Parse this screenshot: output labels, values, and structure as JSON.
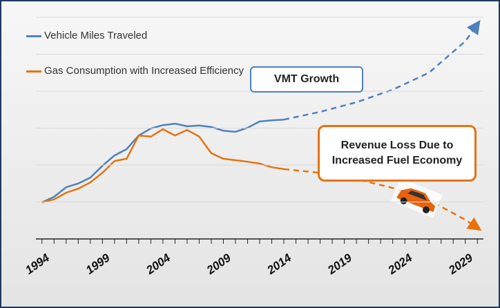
{
  "chart_data": {
    "type": "line",
    "xlim": [
      1993.5,
      2030.5
    ],
    "xticks": [
      1994,
      1999,
      2004,
      2009,
      2014,
      2019,
      2024,
      2029
    ],
    "xminorticks": [
      1994,
      1995,
      1996,
      1997,
      1998,
      1999,
      2000,
      2001,
      2002,
      2003,
      2004,
      2005,
      2006,
      2007,
      2008,
      2009,
      2010,
      2011,
      2012,
      2013,
      2014,
      2015,
      2016,
      2017,
      2018,
      2019,
      2020,
      2021,
      2022,
      2023,
      2024,
      2025,
      2026,
      2027,
      2028,
      2029,
      2030
    ],
    "ylim": [
      0,
      6
    ],
    "yticks": [
      0,
      1,
      2,
      3,
      4,
      5,
      6
    ],
    "grid": true,
    "legend": "top-left",
    "series": [
      {
        "name": "Vehicle Miles Traveled",
        "color": "#4f81bd",
        "dash": false,
        "x": [
          1994,
          1995,
          1996,
          1997,
          1998,
          1999,
          2000,
          2001,
          2002,
          2003,
          2004,
          2005,
          2006,
          2007,
          2008,
          2009,
          2010,
          2011,
          2012,
          2013,
          2014
        ],
        "values": [
          0.99,
          1.14,
          1.4,
          1.5,
          1.66,
          1.98,
          2.26,
          2.43,
          2.8,
          2.99,
          3.08,
          3.12,
          3.05,
          3.07,
          3.03,
          2.93,
          2.9,
          3.01,
          3.18,
          3.21,
          3.23
        ]
      },
      {
        "name": "Gas Consumption with Increased Efficiency",
        "color": "#e8720c",
        "dash": false,
        "x": [
          1994,
          1995,
          1996,
          1997,
          1998,
          1999,
          2000,
          2001,
          2002,
          2003,
          2004,
          2005,
          2006,
          2007,
          2008,
          2009,
          2010,
          2011,
          2012,
          2013,
          2014
        ],
        "values": [
          0.99,
          1.07,
          1.25,
          1.36,
          1.53,
          1.79,
          2.11,
          2.17,
          2.8,
          2.77,
          2.97,
          2.8,
          2.95,
          2.77,
          2.32,
          2.17,
          2.13,
          2.09,
          2.04,
          1.94,
          1.89
        ]
      },
      {
        "color": "#4f81bd",
        "dash": true,
        "x": [
          2014,
          2017,
          2020,
          2023,
          2026,
          2029,
          2030
        ],
        "values": [
          3.23,
          3.44,
          3.7,
          4.04,
          4.5,
          5.35,
          5.81
        ]
      },
      {
        "color": "#e8720c",
        "dash": true,
        "x": [
          2014,
          2017,
          2020,
          2023,
          2026,
          2029,
          2030
        ],
        "values": [
          1.89,
          1.79,
          1.62,
          1.38,
          1.05,
          0.52,
          0.3
        ]
      }
    ],
    "annotations": [
      "VMT Growth",
      "Revenue Loss Due to Increased Fuel Economy"
    ]
  }
}
